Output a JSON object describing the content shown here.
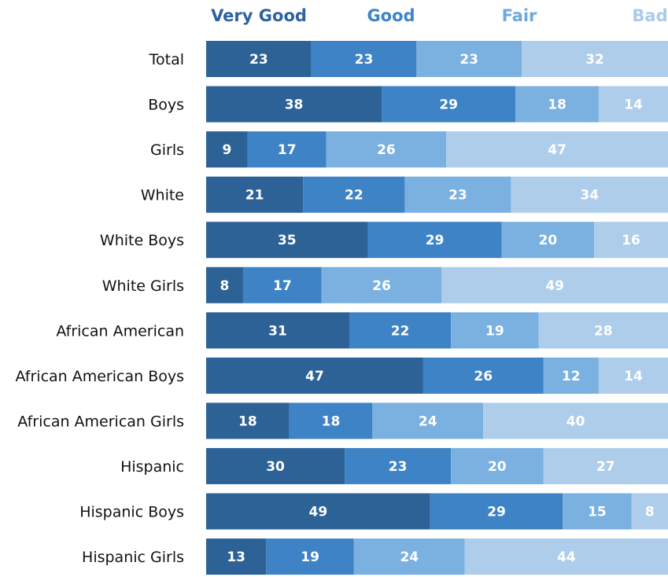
{
  "chart_data": {
    "type": "bar",
    "orientation": "horizontal",
    "stacked": true,
    "xlim": [
      0,
      100
    ],
    "grid": false,
    "legend_position": "top",
    "categories": [
      "Total",
      "Boys",
      "Girls",
      "White",
      "White Boys",
      "White Girls",
      "African American",
      "African American Boys",
      "African American Girls",
      "Hispanic",
      "Hispanic Boys",
      "Hispanic Girls"
    ],
    "series": [
      {
        "name": "Very Good",
        "color": "#2d6297",
        "values": [
          23,
          38,
          9,
          21,
          35,
          8,
          31,
          47,
          18,
          30,
          49,
          13
        ]
      },
      {
        "name": "Good",
        "color": "#3e83c5",
        "values": [
          23,
          29,
          17,
          22,
          29,
          17,
          22,
          26,
          18,
          23,
          29,
          19
        ]
      },
      {
        "name": "Fair",
        "color": "#7ab1e0",
        "values": [
          23,
          18,
          26,
          23,
          20,
          26,
          19,
          12,
          24,
          20,
          15,
          24
        ]
      },
      {
        "name": "Bad",
        "color": "#aecdeb",
        "values": [
          32,
          14,
          47,
          34,
          16,
          49,
          28,
          14,
          40,
          27,
          8,
          44
        ]
      }
    ]
  }
}
